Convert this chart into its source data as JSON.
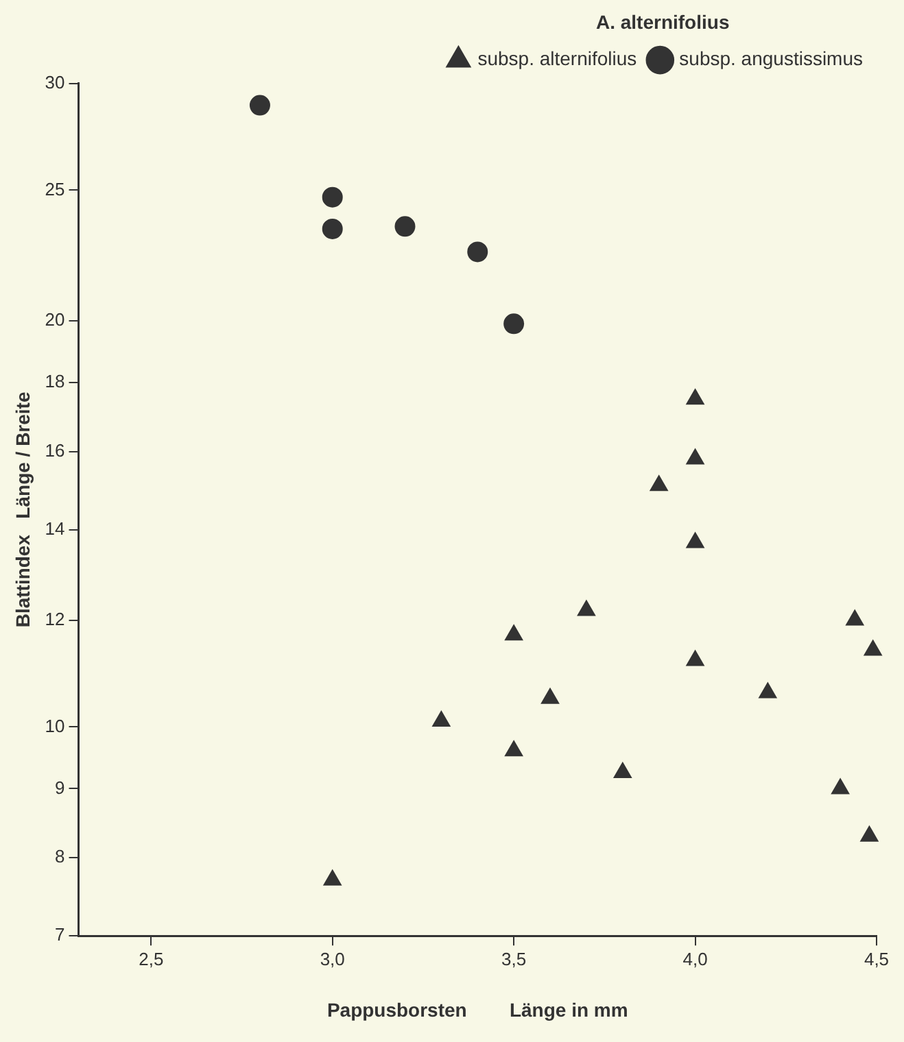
{
  "chart_data": {
    "type": "scatter",
    "xlabel": "Pappusborsten        Länge in mm",
    "ylabel": "Blattindex   Länge / Breite",
    "legend_title": "A. alternifolius",
    "legend": "top right",
    "grid": false,
    "log": "y",
    "xlim": [
      2.3,
      4.5
    ],
    "xticks": [
      {
        "value": 2.5,
        "label": "2,5"
      },
      {
        "value": 3.0,
        "label": "3,0"
      },
      {
        "value": 3.5,
        "label": "3,5"
      },
      {
        "value": 4.0,
        "label": "4,0"
      },
      {
        "value": 4.5,
        "label": "4,5"
      }
    ],
    "ylim": [
      7,
      30
    ],
    "yticks": [
      7,
      8,
      9,
      10,
      12,
      14,
      16,
      18,
      20,
      25,
      30
    ],
    "series": [
      {
        "name": "subsp. alternifolius",
        "color": "#333333",
        "marker": "triangle",
        "x": [
          4.0,
          4.0,
          3.9,
          4.0,
          3.7,
          3.5,
          4.0,
          3.6,
          3.3,
          3.5,
          3.8,
          4.2,
          4.44,
          4.49,
          4.4,
          4.48,
          3.0
        ],
        "values": [
          17.5,
          15.8,
          15.1,
          13.7,
          12.2,
          11.7,
          11.2,
          10.5,
          10.1,
          9.6,
          9.25,
          10.6,
          12.0,
          11.4,
          9.0,
          8.3,
          7.7
        ]
      },
      {
        "name": "subsp. angustissimus",
        "color": "#333333",
        "marker": "circle",
        "x": [
          2.8,
          3.0,
          3.0,
          3.2,
          3.4,
          3.5
        ],
        "values": [
          28.9,
          24.7,
          23.4,
          23.5,
          22.5,
          19.9
        ]
      }
    ]
  }
}
